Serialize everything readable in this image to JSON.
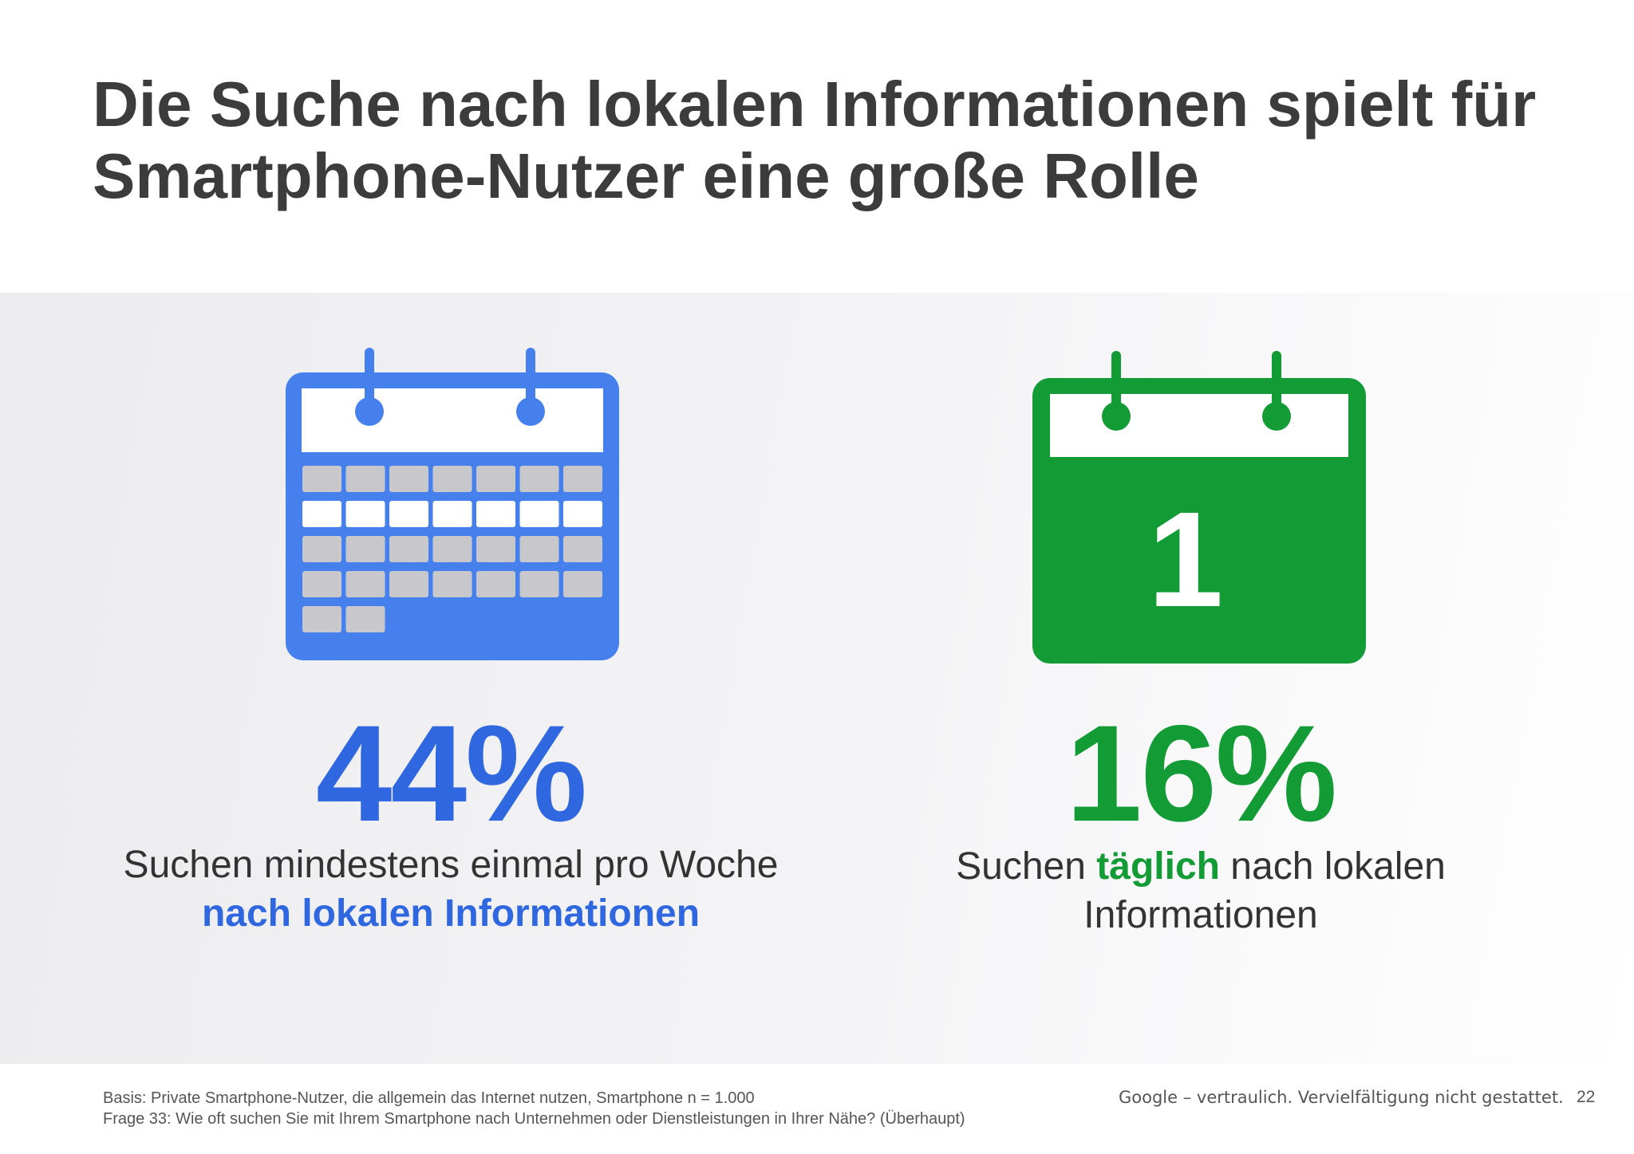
{
  "title": {
    "line1": "Die Suche nach lokalen Informationen spielt für",
    "line2": "Smartphone-Nutzer eine große Rolle"
  },
  "left": {
    "icon": "calendar-week-icon",
    "color": "#4680ec",
    "value": "44%",
    "desc_plain": "Suchen mindestens einmal pro Woche ",
    "desc_highlight": "nach lokalen Informationen"
  },
  "right": {
    "icon": "calendar-day-icon",
    "color": "#139b35",
    "icon_number": "1",
    "value": "16%",
    "desc_pre": "Suchen ",
    "desc_highlight": "täglich",
    "desc_post": " nach lokalen Informationen"
  },
  "footer": {
    "basis": "Basis: Private Smartphone-Nutzer, die allgemein das Internet nutzen, Smartphone n = 1.000",
    "question": "Frage 33: Wie oft suchen Sie mit Ihrem Smartphone nach Unternehmen oder Dienstleistungen in Ihrer Nähe? (Überhaupt)",
    "confidential": "Google – vertraulich. Vervielfältigung nicht gestattet.",
    "page": "22"
  }
}
